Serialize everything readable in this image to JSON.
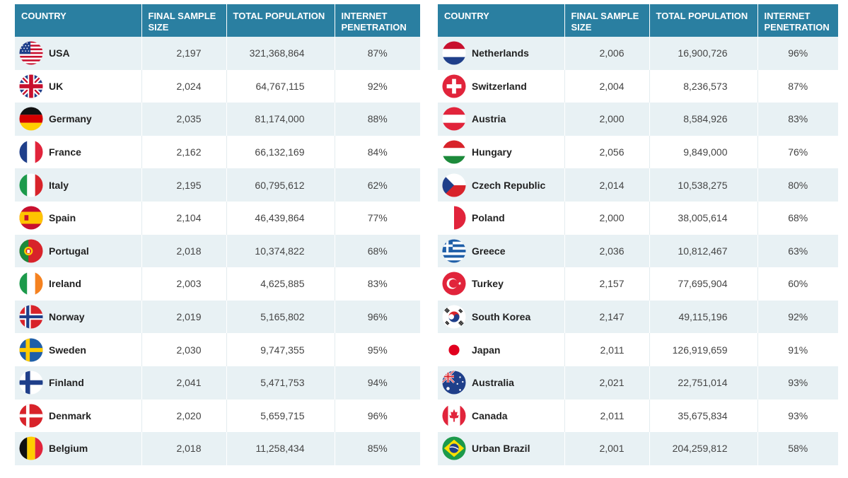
{
  "headers": {
    "country": "COUNTRY",
    "sample": "FINAL SAMPLE SIZE",
    "population": "TOTAL POPULATION",
    "penetration": "INTERNET PENETRATION"
  },
  "left": [
    {
      "country": "USA",
      "flag": "usa-flag-icon",
      "sample": "2,197",
      "population": "321,368,864",
      "penetration": "87%"
    },
    {
      "country": "UK",
      "flag": "uk-flag-icon",
      "sample": "2,024",
      "population": "64,767,115",
      "penetration": "92%"
    },
    {
      "country": "Germany",
      "flag": "germany-flag-icon",
      "sample": "2,035",
      "population": "81,174,000",
      "penetration": "88%"
    },
    {
      "country": "France",
      "flag": "france-flag-icon",
      "sample": "2,162",
      "population": "66,132,169",
      "penetration": "84%"
    },
    {
      "country": "Italy",
      "flag": "italy-flag-icon",
      "sample": "2,195",
      "population": "60,795,612",
      "penetration": "62%"
    },
    {
      "country": "Spain",
      "flag": "spain-flag-icon",
      "sample": "2,104",
      "population": "46,439,864",
      "penetration": "77%"
    },
    {
      "country": "Portugal",
      "flag": "portugal-flag-icon",
      "sample": "2,018",
      "population": "10,374,822",
      "penetration": "68%"
    },
    {
      "country": "Ireland",
      "flag": "ireland-flag-icon",
      "sample": "2,003",
      "population": "4,625,885",
      "penetration": "83%"
    },
    {
      "country": "Norway",
      "flag": "norway-flag-icon",
      "sample": "2,019",
      "population": "5,165,802",
      "penetration": "96%"
    },
    {
      "country": "Sweden",
      "flag": "sweden-flag-icon",
      "sample": "2,030",
      "population": "9,747,355",
      "penetration": "95%"
    },
    {
      "country": "Finland",
      "flag": "finland-flag-icon",
      "sample": "2,041",
      "population": "5,471,753",
      "penetration": "94%"
    },
    {
      "country": "Denmark",
      "flag": "denmark-flag-icon",
      "sample": "2,020",
      "population": "5,659,715",
      "penetration": "96%"
    },
    {
      "country": "Belgium",
      "flag": "belgium-flag-icon",
      "sample": "2,018",
      "population": "11,258,434",
      "penetration": "85%"
    }
  ],
  "right": [
    {
      "country": "Netherlands",
      "flag": "netherlands-flag-icon",
      "sample": "2,006",
      "population": "16,900,726",
      "penetration": "96%"
    },
    {
      "country": "Switzerland",
      "flag": "switzerland-flag-icon",
      "sample": "2,004",
      "population": "8,236,573",
      "penetration": "87%"
    },
    {
      "country": "Austria",
      "flag": "austria-flag-icon",
      "sample": "2,000",
      "population": "8,584,926",
      "penetration": "83%"
    },
    {
      "country": "Hungary",
      "flag": "hungary-flag-icon",
      "sample": "2,056",
      "population": "9,849,000",
      "penetration": "76%"
    },
    {
      "country": "Czech Republic",
      "flag": "czech-flag-icon",
      "sample": "2,014",
      "population": "10,538,275",
      "penetration": "80%"
    },
    {
      "country": "Poland",
      "flag": "poland-flag-icon",
      "sample": "2,000",
      "population": "38,005,614",
      "penetration": "68%"
    },
    {
      "country": "Greece",
      "flag": "greece-flag-icon",
      "sample": "2,036",
      "population": "10,812,467",
      "penetration": "63%"
    },
    {
      "country": "Turkey",
      "flag": "turkey-flag-icon",
      "sample": "2,157",
      "population": "77,695,904",
      "penetration": "60%"
    },
    {
      "country": "South Korea",
      "flag": "south-korea-flag-icon",
      "sample": "2,147",
      "population": "49,115,196",
      "penetration": "92%"
    },
    {
      "country": "Japan",
      "flag": "japan-flag-icon",
      "sample": "2,011",
      "population": "126,919,659",
      "penetration": "91%"
    },
    {
      "country": "Australia",
      "flag": "australia-flag-icon",
      "sample": "2,021",
      "population": "22,751,014",
      "penetration": "93%"
    },
    {
      "country": "Canada",
      "flag": "canada-flag-icon",
      "sample": "2,011",
      "population": "35,675,834",
      "penetration": "93%"
    },
    {
      "country": "Urban Brazil",
      "flag": "brazil-flag-icon",
      "sample": "2,001",
      "population": "204,259,812",
      "penetration": "58%"
    }
  ]
}
